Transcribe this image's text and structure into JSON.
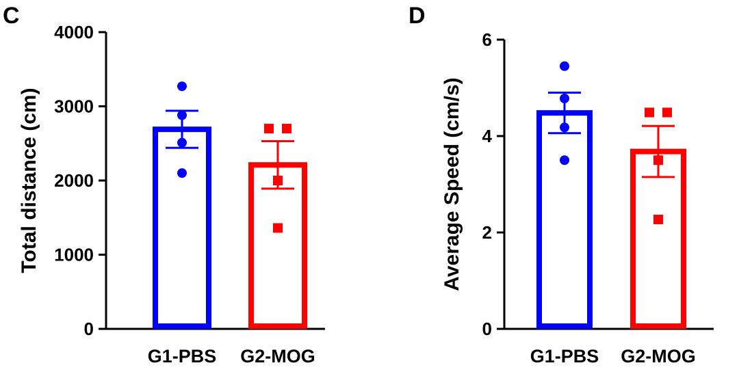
{
  "chart_data": [
    {
      "type": "bar",
      "panel_label": "C",
      "ylabel": "Total distance (cm)",
      "xlabel": "",
      "ylim": [
        0,
        4000
      ],
      "yticks": [
        0,
        1000,
        2000,
        3000,
        4000
      ],
      "categories": [
        "G1-PBS",
        "G2-MOG"
      ],
      "colors": [
        "#0000ff",
        "#ff0000"
      ],
      "markers": [
        "circle",
        "square"
      ],
      "means": [
        2690,
        2210
      ],
      "errors": [
        250,
        320
      ],
      "points": [
        [
          3270,
          2880,
          2510,
          2100
        ],
        [
          2700,
          2700,
          2000,
          1360
        ]
      ]
    },
    {
      "type": "bar",
      "panel_label": "D",
      "ylabel": "Average Speed (cm/s)",
      "xlabel": "",
      "ylim": [
        0,
        6
      ],
      "yticks": [
        0,
        2,
        4,
        6
      ],
      "categories": [
        "G1-PBS",
        "G2-MOG"
      ],
      "colors": [
        "#0000ff",
        "#ff0000"
      ],
      "markers": [
        "circle",
        "square"
      ],
      "means": [
        4.48,
        3.68
      ],
      "errors": [
        0.42,
        0.53
      ],
      "points": [
        [
          5.45,
          4.78,
          4.18,
          3.5
        ],
        [
          4.49,
          4.49,
          3.5,
          2.27
        ]
      ]
    }
  ]
}
